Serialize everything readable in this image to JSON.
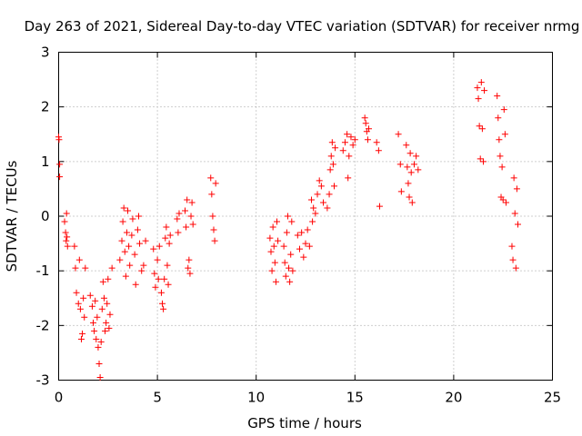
{
  "chart_data": {
    "type": "scatter",
    "title": "Day 263 of 2021, Sidereal Day-to-day VTEC variation (SDTVAR) for receiver nrmg",
    "xlabel": "GPS time / hours",
    "ylabel": "SDTVAR / TECUs",
    "xlim": [
      0,
      25
    ],
    "ylim": [
      -3,
      3
    ],
    "x_ticks": [
      0,
      5,
      10,
      15,
      20,
      25
    ],
    "y_ticks": [
      -3,
      -2,
      -1,
      0,
      1,
      2,
      3
    ],
    "grid": true,
    "marker": "plus",
    "color": "#ff0000",
    "series": [
      {
        "name": "SDTVAR",
        "points": [
          [
            0.0,
            1.45
          ],
          [
            0.02,
            1.4
          ],
          [
            0.05,
            0.95
          ],
          [
            0.05,
            0.72
          ],
          [
            0.3,
            -0.1
          ],
          [
            0.35,
            -0.3
          ],
          [
            0.38,
            -0.45
          ],
          [
            0.4,
            0.05
          ],
          [
            0.42,
            -0.38
          ],
          [
            0.45,
            -0.55
          ],
          [
            0.8,
            -0.55
          ],
          [
            0.85,
            -0.95
          ],
          [
            0.9,
            -1.4
          ],
          [
            1.0,
            -1.6
          ],
          [
            1.05,
            -0.8
          ],
          [
            1.1,
            -1.7
          ],
          [
            1.15,
            -2.25
          ],
          [
            1.2,
            -2.15
          ],
          [
            1.25,
            -1.5
          ],
          [
            1.3,
            -1.85
          ],
          [
            1.35,
            -0.95
          ],
          [
            1.6,
            -1.45
          ],
          [
            1.7,
            -1.65
          ],
          [
            1.75,
            -1.95
          ],
          [
            1.8,
            -2.1
          ],
          [
            1.85,
            -1.55
          ],
          [
            1.9,
            -2.25
          ],
          [
            1.95,
            -1.85
          ],
          [
            2.0,
            -2.4
          ],
          [
            2.05,
            -2.7
          ],
          [
            2.1,
            -2.95
          ],
          [
            2.15,
            -2.3
          ],
          [
            2.2,
            -1.7
          ],
          [
            2.25,
            -1.2
          ],
          [
            2.3,
            -1.5
          ],
          [
            2.35,
            -2.1
          ],
          [
            2.4,
            -1.95
          ],
          [
            2.45,
            -1.6
          ],
          [
            2.5,
            -1.15
          ],
          [
            2.55,
            -2.05
          ],
          [
            2.6,
            -1.8
          ],
          [
            2.7,
            -0.95
          ],
          [
            3.1,
            -0.8
          ],
          [
            3.2,
            -0.45
          ],
          [
            3.25,
            -0.1
          ],
          [
            3.3,
            0.15
          ],
          [
            3.35,
            -0.65
          ],
          [
            3.4,
            -1.1
          ],
          [
            3.45,
            -0.3
          ],
          [
            3.5,
            0.1
          ],
          [
            3.55,
            -0.55
          ],
          [
            3.6,
            -0.9
          ],
          [
            3.7,
            -0.35
          ],
          [
            3.75,
            -0.05
          ],
          [
            3.85,
            -0.7
          ],
          [
            3.9,
            -1.25
          ],
          [
            4.0,
            -0.25
          ],
          [
            4.05,
            0.0
          ],
          [
            4.1,
            -0.5
          ],
          [
            4.2,
            -1.0
          ],
          [
            4.3,
            -0.9
          ],
          [
            4.4,
            -0.45
          ],
          [
            4.8,
            -0.6
          ],
          [
            4.85,
            -1.05
          ],
          [
            4.9,
            -1.3
          ],
          [
            5.0,
            -0.8
          ],
          [
            5.05,
            -1.15
          ],
          [
            5.1,
            -0.55
          ],
          [
            5.2,
            -1.4
          ],
          [
            5.25,
            -1.6
          ],
          [
            5.3,
            -1.7
          ],
          [
            5.35,
            -1.15
          ],
          [
            5.4,
            -0.4
          ],
          [
            5.45,
            -0.2
          ],
          [
            5.5,
            -0.9
          ],
          [
            5.55,
            -1.25
          ],
          [
            5.6,
            -0.5
          ],
          [
            5.65,
            -0.35
          ],
          [
            6.0,
            -0.05
          ],
          [
            6.05,
            -0.3
          ],
          [
            6.1,
            0.05
          ],
          [
            6.4,
            0.1
          ],
          [
            6.45,
            -0.2
          ],
          [
            6.5,
            0.3
          ],
          [
            6.55,
            -0.95
          ],
          [
            6.6,
            -0.8
          ],
          [
            6.65,
            -1.05
          ],
          [
            6.7,
            0.0
          ],
          [
            6.75,
            0.25
          ],
          [
            6.8,
            -0.15
          ],
          [
            7.7,
            0.7
          ],
          [
            7.75,
            0.4
          ],
          [
            7.8,
            0.0
          ],
          [
            7.85,
            -0.25
          ],
          [
            7.9,
            -0.45
          ],
          [
            7.95,
            0.6
          ],
          [
            10.7,
            -0.4
          ],
          [
            10.75,
            -0.65
          ],
          [
            10.8,
            -1.0
          ],
          [
            10.85,
            -0.2
          ],
          [
            10.9,
            -0.55
          ],
          [
            10.95,
            -0.85
          ],
          [
            11.0,
            -1.2
          ],
          [
            11.05,
            -0.1
          ],
          [
            11.1,
            -0.45
          ],
          [
            11.4,
            -0.55
          ],
          [
            11.45,
            -0.85
          ],
          [
            11.5,
            -1.1
          ],
          [
            11.55,
            -0.3
          ],
          [
            11.6,
            0.0
          ],
          [
            11.65,
            -0.95
          ],
          [
            11.7,
            -1.2
          ],
          [
            11.75,
            -0.7
          ],
          [
            11.8,
            -0.1
          ],
          [
            11.85,
            -1.0
          ],
          [
            12.1,
            -0.35
          ],
          [
            12.2,
            -0.6
          ],
          [
            12.3,
            -0.3
          ],
          [
            12.4,
            -0.75
          ],
          [
            12.5,
            -0.5
          ],
          [
            12.6,
            -0.25
          ],
          [
            12.7,
            -0.55
          ],
          [
            12.8,
            0.3
          ],
          [
            12.85,
            -0.1
          ],
          [
            12.9,
            0.15
          ],
          [
            13.0,
            0.05
          ],
          [
            13.1,
            0.4
          ],
          [
            13.2,
            0.65
          ],
          [
            13.3,
            0.55
          ],
          [
            13.4,
            0.25
          ],
          [
            13.6,
            0.15
          ],
          [
            13.7,
            0.4
          ],
          [
            13.75,
            0.85
          ],
          [
            13.8,
            1.1
          ],
          [
            13.85,
            1.35
          ],
          [
            13.9,
            0.95
          ],
          [
            13.95,
            0.55
          ],
          [
            14.0,
            1.25
          ],
          [
            14.4,
            1.2
          ],
          [
            14.5,
            1.35
          ],
          [
            14.6,
            1.5
          ],
          [
            14.65,
            0.7
          ],
          [
            14.7,
            1.1
          ],
          [
            14.8,
            1.45
          ],
          [
            14.9,
            1.3
          ],
          [
            15.0,
            1.4
          ],
          [
            15.5,
            1.8
          ],
          [
            15.55,
            1.7
          ],
          [
            15.6,
            1.55
          ],
          [
            15.65,
            1.4
          ],
          [
            15.7,
            1.6
          ],
          [
            16.1,
            1.35
          ],
          [
            16.2,
            1.2
          ],
          [
            16.25,
            0.18
          ],
          [
            17.2,
            1.5
          ],
          [
            17.3,
            0.95
          ],
          [
            17.35,
            0.45
          ],
          [
            17.6,
            1.3
          ],
          [
            17.65,
            0.9
          ],
          [
            17.7,
            0.6
          ],
          [
            17.75,
            0.35
          ],
          [
            17.8,
            1.15
          ],
          [
            17.85,
            0.8
          ],
          [
            17.9,
            0.25
          ],
          [
            18.0,
            0.95
          ],
          [
            18.1,
            1.1
          ],
          [
            18.2,
            0.85
          ],
          [
            21.2,
            2.35
          ],
          [
            21.25,
            2.15
          ],
          [
            21.3,
            1.65
          ],
          [
            21.35,
            1.05
          ],
          [
            21.4,
            2.45
          ],
          [
            21.45,
            1.6
          ],
          [
            21.5,
            1.0
          ],
          [
            21.55,
            2.3
          ],
          [
            22.2,
            2.2
          ],
          [
            22.25,
            1.8
          ],
          [
            22.3,
            1.4
          ],
          [
            22.35,
            1.1
          ],
          [
            22.4,
            0.35
          ],
          [
            22.45,
            0.9
          ],
          [
            22.5,
            0.3
          ],
          [
            22.55,
            1.95
          ],
          [
            22.6,
            1.5
          ],
          [
            22.65,
            0.25
          ],
          [
            22.95,
            -0.55
          ],
          [
            23.0,
            -0.8
          ],
          [
            23.05,
            0.7
          ],
          [
            23.1,
            0.05
          ],
          [
            23.15,
            -0.95
          ],
          [
            23.2,
            0.5
          ],
          [
            23.25,
            -0.15
          ]
        ]
      }
    ]
  }
}
